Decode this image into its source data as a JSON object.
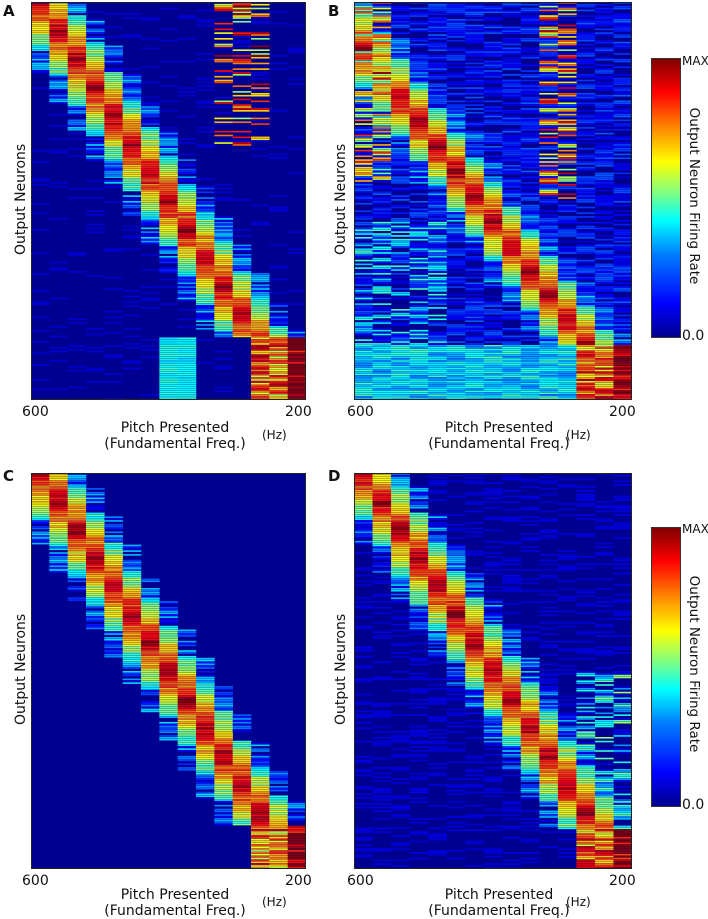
{
  "colors": {
    "background": "#000090",
    "colormap": [
      "#00008f",
      "#0000ff",
      "#0080ff",
      "#00ffff",
      "#80ff80",
      "#ffff00",
      "#ff8000",
      "#ff0000",
      "#800000"
    ]
  },
  "colorbar": {
    "max_label": "MAX",
    "min_label": "0.0",
    "title": "Output Neuron Firing Rate"
  },
  "chart_data": [
    {
      "type": "heatmap",
      "panel": "A",
      "ylabel": "Output Neurons",
      "xlabel_line1": "Pitch Presented",
      "xlabel_line2": "(Fundamental Freq.)",
      "x_unit": "(Hz)",
      "x_ticks": [
        "600",
        "200"
      ],
      "pitch_bins": 15,
      "neuron_rows": 210,
      "diagonal": [
        [
          0,
          0
        ],
        [
          14,
          1
        ]
      ],
      "block_start": 0.84,
      "noise": 0.08,
      "extra": "A"
    },
    {
      "type": "heatmap",
      "panel": "B",
      "ylabel": "Output Neurons",
      "xlabel_line1": "Pitch Presented",
      "xlabel_line2": "(Fundamental Freq.)",
      "x_unit": "(Hz)",
      "x_ticks": [
        "600",
        "200"
      ],
      "pitch_bins": 15,
      "neuron_rows": 210,
      "diagonal": [
        [
          3,
          0.3
        ],
        [
          12,
          0.86
        ]
      ],
      "block_start": 0.86,
      "noise": 0.22,
      "extra": "B"
    },
    {
      "type": "heatmap",
      "panel": "C",
      "ylabel": "Output Neurons",
      "xlabel_line1": "Pitch Presented",
      "xlabel_line2": "(Fundamental Freq.)",
      "x_unit": "(Hz)",
      "x_ticks": [
        "600",
        "200"
      ],
      "pitch_bins": 15,
      "neuron_rows": 210,
      "diagonal": [
        [
          0,
          0
        ],
        [
          14,
          1
        ]
      ],
      "block_start": 0.89,
      "noise": 0.05,
      "extra": "C"
    },
    {
      "type": "heatmap",
      "panel": "D",
      "ylabel": "Output Neurons",
      "xlabel_line1": "Pitch Presented",
      "xlabel_line2": "(Fundamental Freq.)",
      "x_unit": "(Hz)",
      "x_ticks": [
        "600",
        "200"
      ],
      "pitch_bins": 15,
      "neuron_rows": 210,
      "diagonal": [
        [
          0,
          0
        ],
        [
          14,
          1
        ]
      ],
      "block_start": 0.9,
      "noise": 0.1,
      "extra": "D"
    }
  ]
}
